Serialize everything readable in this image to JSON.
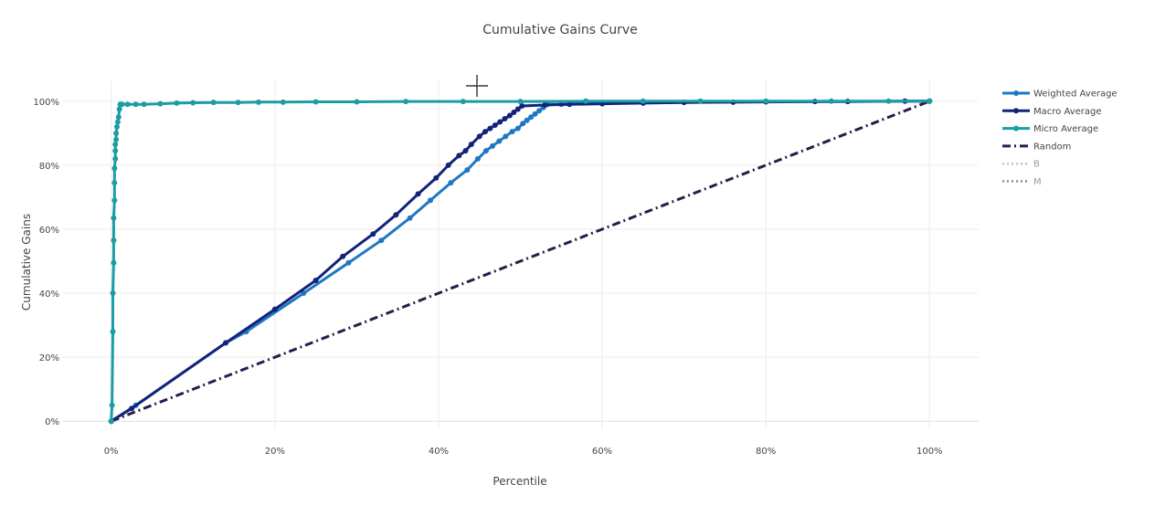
{
  "chart_data": {
    "type": "line",
    "title": "Cumulative Gains Curve",
    "xlabel": "Percentile",
    "ylabel": "Cumulative Gains",
    "xlim": [
      -0.06,
      1.06
    ],
    "ylim": [
      -0.025,
      1.065
    ],
    "x_ticks": [
      {
        "value": 0,
        "label": "0%"
      },
      {
        "value": 0.2,
        "label": "20%"
      },
      {
        "value": 0.4,
        "label": "40%"
      },
      {
        "value": 0.6,
        "label": "60%"
      },
      {
        "value": 0.8,
        "label": "80%"
      },
      {
        "value": 1.0,
        "label": "100%"
      }
    ],
    "y_ticks": [
      {
        "value": 0,
        "label": "0%"
      },
      {
        "value": 0.2,
        "label": "20%"
      },
      {
        "value": 0.4,
        "label": "40%"
      },
      {
        "value": 0.6,
        "label": "60%"
      },
      {
        "value": 0.8,
        "label": "80%"
      },
      {
        "value": 1.0,
        "label": "100%"
      }
    ],
    "grid": true,
    "legend_position": "right",
    "series": [
      {
        "name": "Weighted Average",
        "color": "#1f77c4",
        "dash": "solid",
        "markers": true,
        "x": [
          0,
          0.03,
          0.14,
          0.165,
          0.235,
          0.29,
          0.33,
          0.365,
          0.39,
          0.415,
          0.435,
          0.448,
          0.458,
          0.466,
          0.474,
          0.482,
          0.49,
          0.497,
          0.503,
          0.508,
          0.513,
          0.518,
          0.523,
          0.528,
          0.533,
          0.55,
          0.6,
          1.0
        ],
        "y": [
          0,
          0.05,
          0.245,
          0.28,
          0.4,
          0.495,
          0.565,
          0.635,
          0.69,
          0.745,
          0.785,
          0.82,
          0.845,
          0.86,
          0.875,
          0.89,
          0.905,
          0.915,
          0.93,
          0.94,
          0.95,
          0.96,
          0.97,
          0.98,
          0.99,
          0.99,
          0.995,
          1.0
        ]
      },
      {
        "name": "Macro Average",
        "color": "#13237a",
        "dash": "solid",
        "markers": true,
        "x": [
          0,
          0.025,
          0.14,
          0.2,
          0.25,
          0.283,
          0.32,
          0.348,
          0.375,
          0.397,
          0.412,
          0.425,
          0.433,
          0.44,
          0.45,
          0.457,
          0.463,
          0.469,
          0.475,
          0.481,
          0.487,
          0.492,
          0.497,
          0.502,
          0.53,
          0.56,
          0.6,
          0.65,
          0.7,
          0.76,
          0.8,
          0.86,
          0.9,
          0.97,
          1.0
        ],
        "y": [
          0,
          0.04,
          0.245,
          0.35,
          0.44,
          0.515,
          0.585,
          0.645,
          0.71,
          0.76,
          0.8,
          0.83,
          0.845,
          0.865,
          0.89,
          0.905,
          0.915,
          0.925,
          0.935,
          0.945,
          0.955,
          0.965,
          0.975,
          0.985,
          0.988,
          0.99,
          0.992,
          0.994,
          0.996,
          0.997,
          0.998,
          0.999,
          0.999,
          1.0,
          1.0
        ]
      },
      {
        "name": "Micro Average",
        "color": "#1a9da3",
        "dash": "solid",
        "markers": true,
        "x": [
          0,
          0.001,
          0.002,
          0.002,
          0.003,
          0.003,
          0.003,
          0.004,
          0.004,
          0.004,
          0.005,
          0.005,
          0.005,
          0.006,
          0.006,
          0.007,
          0.008,
          0.009,
          0.01,
          0.011,
          0.013,
          0.02,
          0.03,
          0.04,
          0.06,
          0.08,
          0.1,
          0.125,
          0.155,
          0.18,
          0.21,
          0.25,
          0.3,
          0.36,
          0.43,
          0.5,
          0.58,
          0.65,
          0.72,
          0.8,
          0.88,
          0.95,
          1.0
        ],
        "y": [
          0,
          0.05,
          0.28,
          0.4,
          0.495,
          0.565,
          0.635,
          0.69,
          0.745,
          0.79,
          0.82,
          0.845,
          0.865,
          0.88,
          0.9,
          0.92,
          0.935,
          0.95,
          0.975,
          0.99,
          0.99,
          0.99,
          0.99,
          0.99,
          0.992,
          0.994,
          0.995,
          0.996,
          0.996,
          0.997,
          0.997,
          0.998,
          0.998,
          0.999,
          0.999,
          0.999,
          1.0,
          1.0,
          1.0,
          1.0,
          1.0,
          1.0,
          1.0
        ]
      },
      {
        "name": "Random",
        "color": "#2a1a4e",
        "dash": "dashdot",
        "markers": false,
        "x": [
          0,
          1
        ],
        "y": [
          0,
          1
        ]
      },
      {
        "name": "B",
        "color": "#c6b9d9",
        "dash": "dot",
        "markers": false,
        "visible": false,
        "x": [],
        "y": []
      },
      {
        "name": "M",
        "color": "#9c7fa3",
        "dash": "dot",
        "markers": false,
        "visible": false,
        "x": [],
        "y": []
      }
    ]
  }
}
